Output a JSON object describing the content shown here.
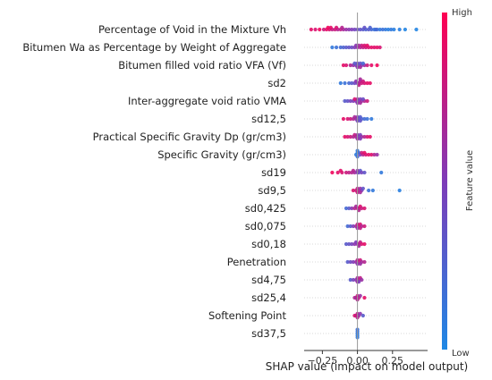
{
  "chart_data": {
    "type": "scatter",
    "subtype": "shap-beeswarm",
    "features": [
      "Percentage of Void in the Mixture Vh",
      "Bitumen Wa as Percentage by Weight of Aggregate",
      "Bitumen filled void ratio VFA (Vf)",
      "sd2",
      "Inter-aggregate void ratio VMA",
      "sd12,5",
      "Practical Specific Gravity Dp (gr/cm3)",
      "Specific Gravity (gr/cm3)",
      "sd19",
      "sd9,5",
      "sd0,425",
      "sd0,075",
      "sd0,18",
      "Penetration",
      "sd4,75",
      "sd25,4",
      "Softening Point",
      "sd37,5"
    ],
    "x_ticks": [
      -0.25,
      0.0,
      0.25
    ],
    "x_tick_labels": [
      "−0.25",
      "0.00",
      "0.25"
    ],
    "xlim": [
      -0.38,
      0.5
    ],
    "xlabel": "SHAP value (impact on model output)",
    "colorbar": {
      "label": "Feature value",
      "high_label": "High",
      "low_label": "Low",
      "low_color": "#1e88e5",
      "high_color": "#ff0052"
    },
    "points": [
      [
        [
          -0.33,
          0.9
        ],
        [
          -0.3,
          0.85
        ],
        [
          -0.27,
          0.95
        ],
        [
          -0.24,
          0.8
        ],
        [
          -0.22,
          0.9
        ],
        [
          -0.2,
          0.85
        ],
        [
          -0.18,
          0.75
        ],
        [
          -0.16,
          0.8
        ],
        [
          -0.14,
          0.7
        ],
        [
          -0.12,
          0.75
        ],
        [
          -0.1,
          0.65
        ],
        [
          -0.08,
          0.6
        ],
        [
          -0.06,
          0.55
        ],
        [
          -0.04,
          0.5
        ],
        [
          -0.02,
          0.45
        ],
        [
          0.0,
          0.4
        ],
        [
          0.02,
          0.35
        ],
        [
          0.04,
          0.3
        ],
        [
          0.06,
          0.25
        ],
        [
          0.08,
          0.3
        ],
        [
          0.1,
          0.2
        ],
        [
          0.12,
          0.15
        ],
        [
          0.14,
          0.2
        ],
        [
          0.16,
          0.1
        ],
        [
          0.18,
          0.15
        ],
        [
          0.2,
          0.1
        ],
        [
          0.22,
          0.05
        ],
        [
          0.24,
          0.1
        ],
        [
          0.26,
          0.05
        ],
        [
          0.3,
          0.05
        ],
        [
          0.34,
          0.02
        ],
        [
          0.42,
          0.02
        ],
        [
          -0.21,
          0.95
        ],
        [
          -0.19,
          0.9
        ],
        [
          -0.15,
          0.85
        ],
        [
          -0.11,
          0.7
        ],
        [
          0.05,
          0.35
        ],
        [
          0.09,
          0.25
        ],
        [
          0.13,
          0.18
        ]
      ],
      [
        [
          -0.18,
          0.1
        ],
        [
          -0.15,
          0.15
        ],
        [
          -0.12,
          0.2
        ],
        [
          -0.1,
          0.25
        ],
        [
          -0.08,
          0.3
        ],
        [
          -0.06,
          0.35
        ],
        [
          -0.04,
          0.4
        ],
        [
          -0.02,
          0.5
        ],
        [
          0.0,
          0.6
        ],
        [
          0.02,
          0.7
        ],
        [
          0.04,
          0.75
        ],
        [
          0.06,
          0.8
        ],
        [
          0.08,
          0.85
        ],
        [
          0.1,
          0.9
        ],
        [
          0.12,
          0.88
        ],
        [
          0.14,
          0.9
        ],
        [
          0.16,
          0.85
        ],
        [
          0.03,
          0.8
        ],
        [
          0.05,
          0.85
        ],
        [
          0.07,
          0.9
        ],
        [
          0.01,
          0.65
        ],
        [
          -0.01,
          0.55
        ]
      ],
      [
        [
          -0.1,
          0.9
        ],
        [
          -0.08,
          0.85
        ],
        [
          -0.05,
          0.7
        ],
        [
          -0.03,
          0.6
        ],
        [
          -0.01,
          0.5
        ],
        [
          0.0,
          0.45
        ],
        [
          0.01,
          0.4
        ],
        [
          0.02,
          0.35
        ],
        [
          0.03,
          0.5
        ],
        [
          0.05,
          0.6
        ],
        [
          0.07,
          0.8
        ],
        [
          0.1,
          0.9
        ],
        [
          0.14,
          0.95
        ],
        [
          -0.02,
          0.3
        ],
        [
          0.04,
          0.2
        ],
        [
          0.0,
          0.55
        ],
        [
          0.02,
          0.65
        ]
      ],
      [
        [
          -0.12,
          0.1
        ],
        [
          -0.09,
          0.15
        ],
        [
          -0.06,
          0.2
        ],
        [
          -0.04,
          0.3
        ],
        [
          -0.02,
          0.4
        ],
        [
          0.0,
          0.5
        ],
        [
          0.01,
          0.6
        ],
        [
          0.02,
          0.7
        ],
        [
          0.03,
          0.8
        ],
        [
          0.05,
          0.85
        ],
        [
          0.07,
          0.9
        ],
        [
          0.09,
          0.9
        ],
        [
          0.01,
          0.75
        ],
        [
          -0.01,
          0.55
        ],
        [
          0.04,
          0.8
        ],
        [
          0.02,
          0.65
        ]
      ],
      [
        [
          -0.09,
          0.3
        ],
        [
          -0.07,
          0.35
        ],
        [
          -0.05,
          0.45
        ],
        [
          -0.03,
          0.5
        ],
        [
          -0.01,
          0.55
        ],
        [
          0.0,
          0.6
        ],
        [
          0.01,
          0.5
        ],
        [
          0.02,
          0.45
        ],
        [
          0.03,
          0.6
        ],
        [
          0.05,
          0.7
        ],
        [
          0.07,
          0.8
        ],
        [
          -0.02,
          0.85
        ],
        [
          0.04,
          0.4
        ],
        [
          0.0,
          0.55
        ],
        [
          0.02,
          0.65
        ]
      ],
      [
        [
          -0.1,
          0.9
        ],
        [
          -0.07,
          0.85
        ],
        [
          -0.05,
          0.8
        ],
        [
          -0.03,
          0.7
        ],
        [
          -0.01,
          0.6
        ],
        [
          0.0,
          0.5
        ],
        [
          0.01,
          0.4
        ],
        [
          0.02,
          0.3
        ],
        [
          0.03,
          0.25
        ],
        [
          0.05,
          0.2
        ],
        [
          0.07,
          0.15
        ],
        [
          0.1,
          0.1
        ],
        [
          0.0,
          0.45
        ],
        [
          0.02,
          0.35
        ],
        [
          -0.02,
          0.65
        ]
      ],
      [
        [
          -0.09,
          0.9
        ],
        [
          -0.07,
          0.85
        ],
        [
          -0.05,
          0.8
        ],
        [
          -0.03,
          0.7
        ],
        [
          -0.01,
          0.65
        ],
        [
          0.0,
          0.55
        ],
        [
          0.01,
          0.5
        ],
        [
          0.02,
          0.45
        ],
        [
          0.03,
          0.6
        ],
        [
          0.05,
          0.7
        ],
        [
          0.07,
          0.85
        ],
        [
          0.09,
          0.9
        ],
        [
          0.0,
          0.6
        ],
        [
          0.02,
          0.5
        ],
        [
          -0.02,
          0.75
        ]
      ],
      [
        [
          -0.01,
          0.1
        ],
        [
          0.0,
          0.05
        ],
        [
          0.0,
          0.15
        ],
        [
          0.02,
          0.5
        ],
        [
          0.04,
          0.7
        ],
        [
          0.06,
          0.85
        ],
        [
          0.08,
          0.9
        ],
        [
          0.1,
          0.88
        ],
        [
          0.12,
          0.7
        ],
        [
          0.14,
          0.6
        ],
        [
          0.0,
          0.1
        ],
        [
          0.01,
          0.2
        ],
        [
          0.03,
          0.8
        ],
        [
          0.05,
          0.9
        ]
      ],
      [
        [
          -0.18,
          0.95
        ],
        [
          -0.14,
          0.9
        ],
        [
          -0.11,
          0.85
        ],
        [
          -0.08,
          0.8
        ],
        [
          -0.06,
          0.75
        ],
        [
          -0.04,
          0.7
        ],
        [
          -0.02,
          0.65
        ],
        [
          0.0,
          0.5
        ],
        [
          0.01,
          0.4
        ],
        [
          0.02,
          0.3
        ],
        [
          0.03,
          0.45
        ],
        [
          0.05,
          0.35
        ],
        [
          0.17,
          0.1
        ],
        [
          -0.12,
          0.88
        ],
        [
          0.0,
          0.55
        ],
        [
          -0.03,
          0.7
        ]
      ],
      [
        [
          -0.03,
          0.85
        ],
        [
          -0.01,
          0.8
        ],
        [
          0.0,
          0.75
        ],
        [
          0.01,
          0.7
        ],
        [
          0.02,
          0.6
        ],
        [
          0.03,
          0.5
        ],
        [
          0.04,
          0.35
        ],
        [
          0.08,
          0.15
        ],
        [
          0.11,
          0.1
        ],
        [
          0.3,
          0.05
        ],
        [
          0.0,
          0.8
        ],
        [
          0.02,
          0.65
        ]
      ],
      [
        [
          -0.08,
          0.2
        ],
        [
          -0.06,
          0.3
        ],
        [
          -0.04,
          0.55
        ],
        [
          -0.02,
          0.7
        ],
        [
          0.0,
          0.8
        ],
        [
          0.01,
          0.75
        ],
        [
          0.02,
          0.85
        ],
        [
          0.03,
          0.8
        ],
        [
          0.05,
          0.85
        ],
        [
          -0.01,
          0.65
        ],
        [
          0.01,
          0.7
        ]
      ],
      [
        [
          -0.07,
          0.2
        ],
        [
          -0.05,
          0.3
        ],
        [
          -0.03,
          0.5
        ],
        [
          -0.01,
          0.65
        ],
        [
          0.0,
          0.75
        ],
        [
          0.01,
          0.8
        ],
        [
          0.02,
          0.85
        ],
        [
          0.03,
          0.7
        ],
        [
          0.05,
          0.8
        ],
        [
          0.0,
          0.6
        ],
        [
          0.02,
          0.75
        ]
      ],
      [
        [
          -0.08,
          0.3
        ],
        [
          -0.06,
          0.35
        ],
        [
          -0.04,
          0.45
        ],
        [
          -0.02,
          0.55
        ],
        [
          0.0,
          0.6
        ],
        [
          0.01,
          0.7
        ],
        [
          0.02,
          0.75
        ],
        [
          0.03,
          0.85
        ],
        [
          0.05,
          0.9
        ],
        [
          -0.01,
          0.5
        ],
        [
          0.01,
          0.65
        ]
      ],
      [
        [
          -0.07,
          0.3
        ],
        [
          -0.05,
          0.4
        ],
        [
          -0.03,
          0.5
        ],
        [
          -0.01,
          0.6
        ],
        [
          0.0,
          0.7
        ],
        [
          0.01,
          0.75
        ],
        [
          0.02,
          0.8
        ],
        [
          0.03,
          0.65
        ],
        [
          0.05,
          0.7
        ],
        [
          0.0,
          0.55
        ],
        [
          0.02,
          0.6
        ]
      ],
      [
        [
          -0.05,
          0.3
        ],
        [
          -0.03,
          0.45
        ],
        [
          -0.01,
          0.55
        ],
        [
          0.0,
          0.65
        ],
        [
          0.01,
          0.7
        ],
        [
          0.02,
          0.75
        ],
        [
          0.03,
          0.6
        ],
        [
          0.0,
          0.6
        ],
        [
          0.01,
          0.5
        ]
      ],
      [
        [
          -0.02,
          0.7
        ],
        [
          -0.01,
          0.65
        ],
        [
          0.0,
          0.8
        ],
        [
          0.01,
          0.75
        ],
        [
          0.02,
          0.6
        ],
        [
          0.05,
          0.9
        ],
        [
          0.0,
          0.7
        ]
      ],
      [
        [
          -0.02,
          0.85
        ],
        [
          -0.01,
          0.8
        ],
        [
          0.0,
          0.75
        ],
        [
          0.01,
          0.6
        ],
        [
          0.02,
          0.55
        ],
        [
          0.04,
          0.3
        ],
        [
          0.0,
          0.7
        ]
      ],
      [
        [
          0.0,
          0.1
        ],
        [
          0.0,
          0.12
        ],
        [
          0.0,
          0.08
        ],
        [
          0.0,
          0.15
        ],
        [
          0.0,
          0.1
        ]
      ]
    ]
  }
}
